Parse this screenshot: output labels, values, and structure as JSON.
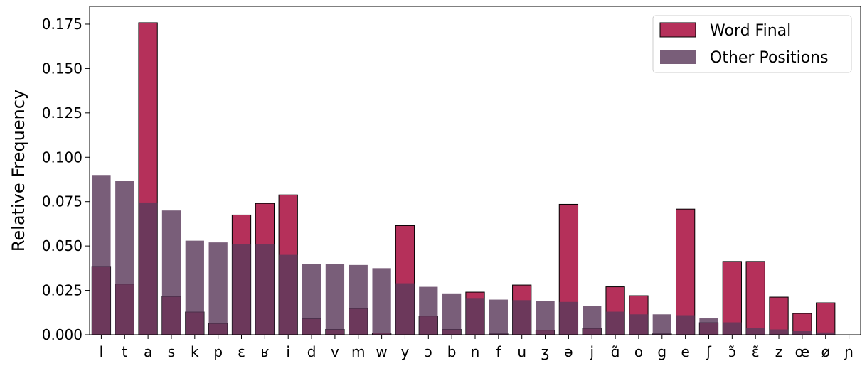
{
  "chart_data": {
    "type": "bar",
    "title": "",
    "xlabel": "",
    "ylabel": "Relative Frequency",
    "ylim": [
      0,
      0.185
    ],
    "yticks": [
      0.0,
      0.025,
      0.05,
      0.075,
      0.1,
      0.125,
      0.15,
      0.175
    ],
    "ytick_labels": [
      "0.000",
      "0.025",
      "0.050",
      "0.075",
      "0.100",
      "0.125",
      "0.150",
      "0.175"
    ],
    "grid": false,
    "legend_position": "top-right",
    "overlay": true,
    "categories": [
      "l",
      "t",
      "a",
      "s",
      "k",
      "p",
      "ɛ",
      "ʁ",
      "i",
      "d",
      "v",
      "m",
      "w",
      "y",
      "ɔ",
      "b",
      "n",
      "f",
      "u",
      "ʒ",
      "ə",
      "j",
      "ɑ̃",
      "o",
      "g",
      "e",
      "ʃ",
      "ɔ̃",
      "ɛ̃",
      "z",
      "œ",
      "ø",
      "ɲ"
    ],
    "series": [
      {
        "name": "Word Final",
        "color": "#b5305a",
        "edge_color": "#000000",
        "values": [
          0.0385,
          0.0285,
          0.1758,
          0.0215,
          0.0128,
          0.0063,
          0.0675,
          0.074,
          0.0788,
          0.009,
          0.003,
          0.0147,
          0.001,
          0.0615,
          0.0105,
          0.003,
          0.024,
          0.0005,
          0.028,
          0.0025,
          0.0735,
          0.0035,
          0.027,
          0.022,
          0.0005,
          0.0708,
          0.0068,
          0.0413,
          0.0413,
          0.0212,
          0.012,
          0.018,
          0.0
        ]
      },
      {
        "name": "Other Positions",
        "color": "#5b3a5c",
        "opacity": 0.82,
        "values": [
          0.09,
          0.0865,
          0.0745,
          0.07,
          0.053,
          0.052,
          0.051,
          0.051,
          0.045,
          0.0398,
          0.0398,
          0.0393,
          0.0375,
          0.029,
          0.027,
          0.0233,
          0.0203,
          0.0198,
          0.0195,
          0.0192,
          0.0185,
          0.0163,
          0.013,
          0.0115,
          0.0115,
          0.011,
          0.0092,
          0.007,
          0.004,
          0.003,
          0.002,
          0.0013,
          0.0
        ]
      }
    ]
  }
}
